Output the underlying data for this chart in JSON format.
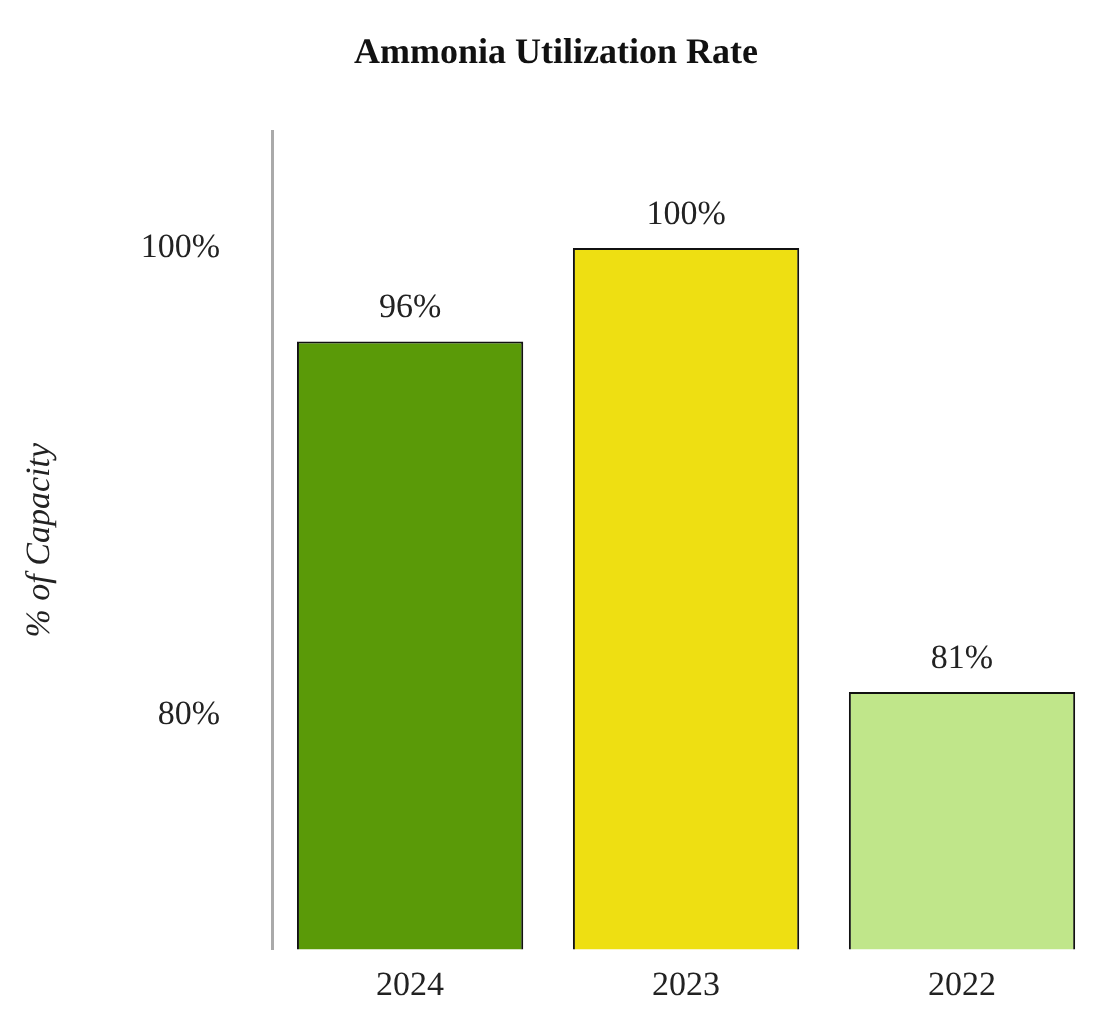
{
  "chart_data": {
    "type": "bar",
    "title": "Ammonia Utilization Rate",
    "ylabel": "% of Capacity",
    "categories": [
      "2024",
      "2023",
      "2022"
    ],
    "values": [
      96,
      100,
      81
    ],
    "colors": [
      "#5a9a08",
      "#eedf12",
      "#c0e68a"
    ],
    "value_labels": [
      "96%",
      "100%",
      "81%"
    ],
    "ylim": [
      70,
      105
    ],
    "yticks": [
      {
        "value": 80,
        "label": "80%"
      },
      {
        "value": 100,
        "label": "100%"
      }
    ],
    "grid": false,
    "legend": false
  }
}
